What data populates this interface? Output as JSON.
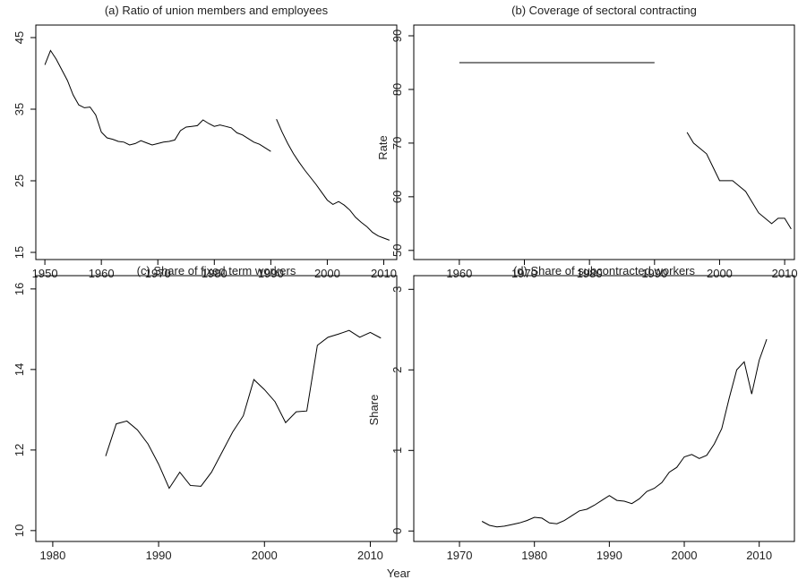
{
  "chart_data": [
    {
      "type": "line",
      "title": "(a) Ratio of union members and employees",
      "xlim": [
        1948.4,
        2012.3
      ],
      "ylim": [
        14,
        46.75
      ],
      "xticks": [
        1950,
        1960,
        1970,
        1980,
        1990,
        2000,
        2010
      ],
      "yticks": [
        15,
        25,
        35,
        45
      ],
      "series": [
        {
          "color": "#000000",
          "x": [
            1950,
            1951,
            1952,
            1953,
            1954,
            1955,
            1956,
            1957,
            1958,
            1959,
            1960,
            1961,
            1962,
            1963,
            1964,
            1965,
            1966,
            1967,
            1968,
            1969,
            1970,
            1971,
            1972,
            1973,
            1974,
            1975,
            1976,
            1977,
            1978,
            1979,
            1980,
            1981,
            1982,
            1983,
            1984,
            1985,
            1986,
            1987,
            1988,
            1989,
            1990
          ],
          "values": [
            41.2,
            43.2,
            42,
            40.5,
            39,
            37,
            35.6,
            35.2,
            35.3,
            34.2,
            31.8,
            31,
            30.8,
            30.5,
            30.4,
            30,
            30.2,
            30.6,
            30.3,
            30,
            30.2,
            30.4,
            30.5,
            30.7,
            32,
            32.5,
            32.6,
            32.7,
            33.5,
            33,
            32.6,
            32.8,
            32.6,
            32.4,
            31.7,
            31.4,
            30.9,
            30.4,
            30.1,
            29.6,
            29.1
          ]
        },
        {
          "color": "#000000",
          "x": [
            1991,
            1992,
            1993,
            1994,
            1995,
            1996,
            1997,
            1998,
            1999,
            2000,
            2001,
            2002,
            2003,
            2004,
            2005,
            2006,
            2007,
            2008,
            2009,
            2010,
            2011
          ],
          "values": [
            33.6,
            31.8,
            30.2,
            28.8,
            27.6,
            26.5,
            25.5,
            24.5,
            23.4,
            22.3,
            21.7,
            22.1,
            21.6,
            20.9,
            19.9,
            19.2,
            18.6,
            17.8,
            17.3,
            17,
            16.7
          ]
        }
      ]
    },
    {
      "type": "line",
      "title": "(b) Coverage of sectoral contracting",
      "ylabel": "Rate",
      "xlim": [
        1953,
        2011.5
      ],
      "ylim": [
        48.3,
        92
      ],
      "xticks": [
        1960,
        1970,
        1980,
        1990,
        2000,
        2010
      ],
      "yticks": [
        50,
        60,
        70,
        80,
        90
      ],
      "series": [
        {
          "color": "#000000",
          "x": [
            1960,
            1990
          ],
          "values": [
            85,
            85
          ]
        },
        {
          "color": "#000000",
          "x": [
            1995,
            1996,
            1997,
            1998,
            1999,
            2000,
            2001,
            2002,
            2003,
            2004,
            2005,
            2006,
            2007,
            2008,
            2009,
            2010,
            2011
          ],
          "values": [
            72,
            70,
            69,
            68,
            65.5,
            63,
            63,
            63,
            62,
            61,
            59,
            57,
            56,
            55,
            56,
            56,
            54
          ]
        }
      ]
    },
    {
      "type": "line",
      "title": "(c) Share of fixed term workers",
      "xlim": [
        1978.4,
        2012.5
      ],
      "ylim": [
        9.73,
        16.33
      ],
      "xticks": [
        1980,
        1990,
        2000,
        2010
      ],
      "yticks": [
        10,
        12,
        14,
        16
      ],
      "series": [
        {
          "color": "#000000",
          "x": [
            1985,
            1986,
            1987,
            1988,
            1989,
            1990,
            1991,
            1992,
            1993,
            1994,
            1995,
            1996,
            1997,
            1998,
            1999,
            2000,
            2001,
            2002,
            2003,
            2004,
            2005,
            2006,
            2007,
            2008,
            2009,
            2010,
            2011
          ],
          "values": [
            11.85,
            12.65,
            12.72,
            12.5,
            12.15,
            11.65,
            11.05,
            11.45,
            11.12,
            11.1,
            11.45,
            11.95,
            12.45,
            12.85,
            13.75,
            13.5,
            13.2,
            12.68,
            12.95,
            12.97,
            14.6,
            14.8,
            14.88,
            14.97,
            14.8,
            14.92,
            14.78
          ]
        }
      ]
    },
    {
      "type": "line",
      "title": "(d) Share of subcontracted workers",
      "ylabel": "Share",
      "xlim": [
        1963.9,
        2014.7
      ],
      "ylim": [
        -0.13,
        3.17
      ],
      "xticks": [
        1970,
        1980,
        1990,
        2000,
        2010
      ],
      "yticks": [
        0,
        1,
        2,
        3
      ],
      "series": [
        {
          "color": "#000000",
          "x": [
            1973,
            1974,
            1975,
            1976,
            1977,
            1978,
            1979,
            1980,
            1981,
            1982,
            1983,
            1984,
            1985,
            1986,
            1987,
            1988,
            1989,
            1990,
            1991,
            1992,
            1993,
            1994,
            1995,
            1996,
            1997,
            1998,
            1999,
            2000,
            2001,
            2002,
            2003,
            2004,
            2005,
            2006,
            2007,
            2008,
            2009,
            2010,
            2011
          ],
          "values": [
            0.12,
            0.07,
            0.05,
            0.06,
            0.08,
            0.1,
            0.13,
            0.17,
            0.16,
            0.1,
            0.09,
            0.13,
            0.19,
            0.25,
            0.27,
            0.32,
            0.38,
            0.44,
            0.38,
            0.37,
            0.34,
            0.4,
            0.49,
            0.53,
            0.6,
            0.73,
            0.79,
            0.92,
            0.95,
            0.9,
            0.94,
            1.08,
            1.27,
            1.65,
            2.0,
            2.1,
            1.7,
            2.12,
            2.38
          ]
        }
      ]
    }
  ],
  "xlabel": "Year"
}
